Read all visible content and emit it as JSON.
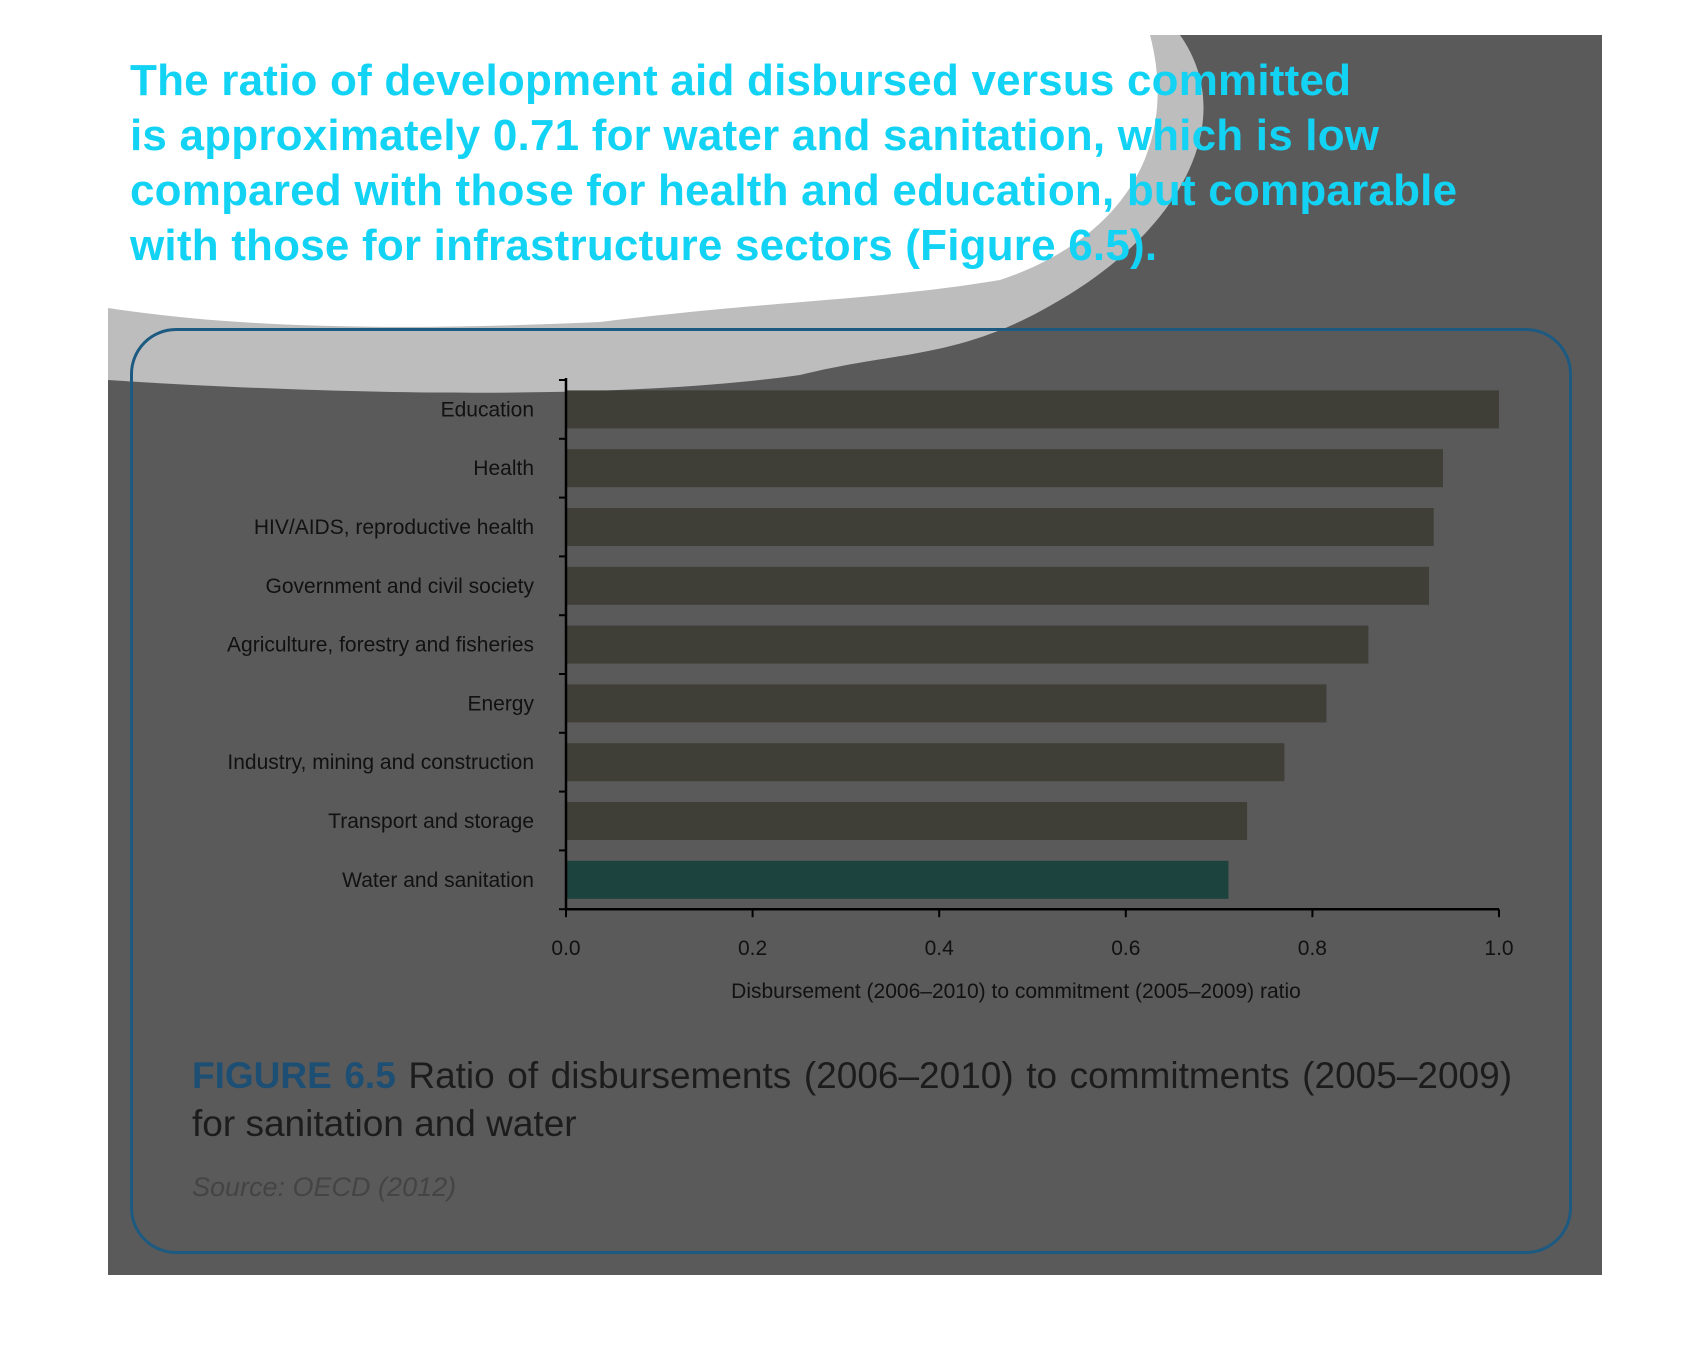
{
  "headline": {
    "lines": [
      "The ratio of development aid disbursed versus committed",
      "is approximately 0.71 for water and sanitation, which is low",
      "compared with those for health and education, but comparable",
      "with those for infrastructure sectors (Figure 6.5)."
    ]
  },
  "figure": {
    "label": "FIGURE 6.5",
    "caption": "Ratio of disbursements (2006–2010) to commitments (2005–2009) for sanitation and water",
    "source": "Source: OECD (2012)"
  },
  "colors": {
    "background": "#5a5a5a",
    "bar": "#403f37",
    "highlight_bar": "#1d433f",
    "headline": "#13d3f5",
    "frame": "#1c5a82"
  },
  "chart_data": {
    "type": "bar",
    "orientation": "horizontal",
    "categories": [
      "Education",
      "Health",
      "HIV/AIDS, reproductive health",
      "Government and civil society",
      "Agriculture, forestry and fisheries",
      "Energy",
      "Industry, mining and construction",
      "Transport and storage",
      "Water and sanitation"
    ],
    "values": [
      1.0,
      0.94,
      0.93,
      0.925,
      0.86,
      0.815,
      0.77,
      0.73,
      0.71
    ],
    "highlight": "Water and sanitation",
    "xlabel": "Disbursement (2006–2010) to commitment (2005–2009) ratio",
    "xlim": [
      0,
      1.0
    ],
    "xticks": [
      "0.0",
      "0.2",
      "0.4",
      "0.6",
      "0.8",
      "1.0"
    ],
    "grid": false,
    "legend": "none"
  }
}
